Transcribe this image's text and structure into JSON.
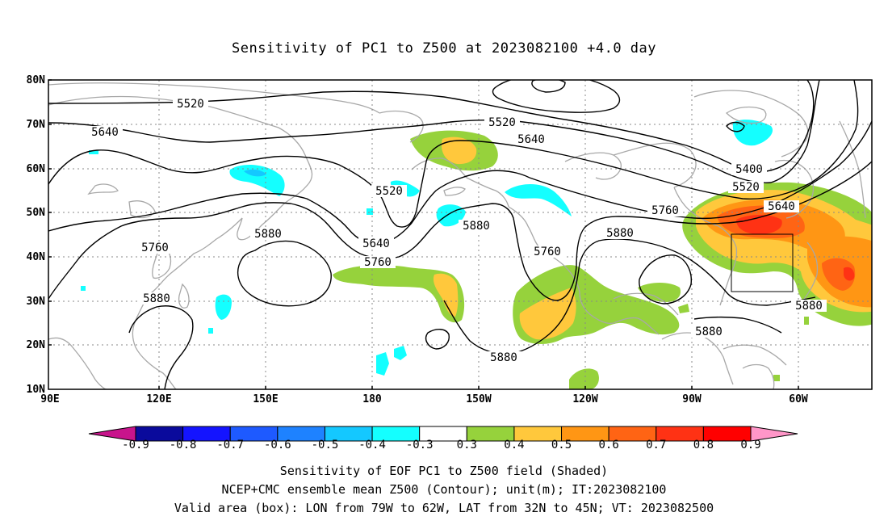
{
  "title": "Sensitivity of PC1 to Z500 at 2023082100 +4.0 day",
  "lat_ticks": [
    "80N",
    "70N",
    "60N",
    "50N",
    "40N",
    "30N",
    "20N",
    "10N"
  ],
  "lon_ticks": [
    "90E",
    "120E",
    "150E",
    "180",
    "150W",
    "120W",
    "90W",
    "60W"
  ],
  "contour_labels": [
    "5520",
    "5640",
    "5520",
    "5640",
    "5400",
    "5520",
    "5640",
    "5760",
    "5880",
    "5880",
    "5760",
    "5640",
    "5520",
    "5760",
    "5880",
    "5760",
    "5880",
    "5880",
    "5880",
    "5880"
  ],
  "colorbar": {
    "labels": [
      "-0.9",
      "-0.8",
      "-0.7",
      "-0.6",
      "-0.5",
      "-0.4",
      "-0.3",
      "0.3",
      "0.4",
      "0.5",
      "0.6",
      "0.7",
      "0.8",
      "0.9"
    ],
    "colors": [
      "#0a0a9c",
      "#1414ff",
      "#1e5aff",
      "#1e82ff",
      "#14c8ff",
      "#14ffff",
      "#ffffff",
      "#96d23c",
      "#ffc83c",
      "#ff9614",
      "#ff6414",
      "#ff3214",
      "#ff0000"
    ],
    "low_end_color": "#c8148c",
    "high_end_color": "#ff96c8"
  },
  "footer": {
    "line1": "Sensitivity of EOF PC1 to Z500 field (Shaded)",
    "line2": "NCEP+CMC ensemble mean Z500 (Contour); unit(m); IT:2023082100",
    "line3": "Valid area (box): LON from 79W to 62W, LAT from 32N to 45N; VT: 2023082500"
  },
  "colors": {
    "coast": "#a8a8a8",
    "grid": "#888888",
    "cyan": "#14ffff",
    "green": "#96d23c",
    "yellow": "#ffc83c",
    "orange": "#ff9614",
    "red_orange": "#ff6414",
    "red": "#ff3214"
  }
}
